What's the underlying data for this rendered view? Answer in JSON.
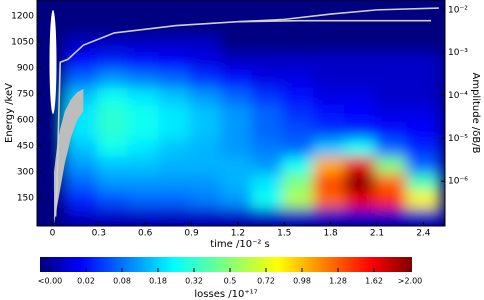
{
  "chart_data": {
    "type": "heatmap",
    "x_label": "time  /10⁻² s",
    "y_label": "Energy  /keV",
    "y2_label": "Amplitude  /δB/B",
    "colorbar_label": "losses  /10⁺¹⁷",
    "xlim": [
      -0.1,
      2.54
    ],
    "xticks": [
      0,
      0.3,
      0.6,
      0.9,
      1.2,
      1.5,
      1.8,
      2.1,
      2.4
    ],
    "ylim": [
      -12,
      1293
    ],
    "yticks": [
      150,
      300,
      450,
      600,
      750,
      900,
      1050,
      1200
    ],
    "y2lim": [
      9e-08,
      0.017
    ],
    "y2_scale": "log",
    "y2ticks": [
      {
        "value": 1e-06,
        "label": "10⁻⁶"
      },
      {
        "value": 1e-05,
        "label": "10⁻⁵"
      },
      {
        "value": 0.0001,
        "label": "10⁻⁴"
      },
      {
        "value": 0.001,
        "label": "10⁻³"
      },
      {
        "value": 0.01,
        "label": "10⁻²"
      }
    ],
    "x_edges": [
      -0.1,
      0.1,
      0.3,
      0.5,
      0.7,
      0.9,
      1.1,
      1.3,
      1.5,
      1.7,
      1.9,
      2.1,
      2.3,
      2.5
    ],
    "y_edges": [
      0,
      100,
      200,
      300,
      400,
      500,
      600,
      700,
      800,
      900,
      1000,
      1100,
      1200,
      1300
    ],
    "z": [
      [
        0,
        0.01,
        0.01,
        0.01,
        0.01,
        0.01,
        0.01,
        0.01,
        0.01,
        0.01,
        0.01,
        0.01,
        0.01
      ],
      [
        0,
        0.05,
        0.08,
        0.1,
        0.1,
        0.12,
        0.15,
        0.3,
        0.6,
        1.2,
        1.6,
        1.4,
        0.8
      ],
      [
        0,
        0.1,
        0.15,
        0.15,
        0.15,
        0.15,
        0.18,
        0.25,
        0.5,
        1.3,
        2.0,
        1.2,
        0.4
      ],
      [
        0,
        0.15,
        0.2,
        0.2,
        0.18,
        0.18,
        0.18,
        0.15,
        0.3,
        1.0,
        1.6,
        0.5,
        0.1
      ],
      [
        0,
        0.2,
        0.3,
        0.25,
        0.2,
        0.18,
        0.15,
        0.12,
        0.1,
        0.2,
        0.3,
        0.1,
        0.05
      ],
      [
        0,
        0.25,
        0.35,
        0.3,
        0.25,
        0.2,
        0.15,
        0.1,
        0.08,
        0.06,
        0.05,
        0.04,
        0.03
      ],
      [
        0,
        0.25,
        0.35,
        0.3,
        0.25,
        0.2,
        0.15,
        0.1,
        0.06,
        0.04,
        0.03,
        0.02,
        0.02
      ],
      [
        0,
        0.2,
        0.3,
        0.25,
        0.2,
        0.15,
        0.1,
        0.06,
        0.04,
        0.02,
        0.02,
        0.01,
        0.01
      ],
      [
        0,
        0.1,
        0.15,
        0.12,
        0.1,
        0.06,
        0.04,
        0.02,
        0.02,
        0.01,
        0.01,
        0.01,
        0.01
      ],
      [
        0,
        0.04,
        0.05,
        0.04,
        0.03,
        0.02,
        0.01,
        0.01,
        0.01,
        0.01,
        0.01,
        0.01,
        0.01
      ],
      [
        0,
        0.01,
        0.01,
        0.01,
        0.01,
        0.01,
        0,
        0,
        0,
        0,
        0,
        0,
        0
      ],
      [
        0,
        0,
        0,
        0,
        0,
        0,
        0,
        0,
        0,
        0,
        0,
        0,
        0
      ],
      [
        0,
        0,
        0,
        0,
        0,
        0,
        0,
        0,
        0,
        0,
        0,
        0,
        0
      ]
    ],
    "color_scale": "sqrt",
    "colorbar_ticks": [
      {
        "value": 0,
        "label": "<0.00"
      },
      0.02,
      0.08,
      0.18,
      0.32,
      0.5,
      0.72,
      0.98,
      1.28,
      1.62,
      {
        "value": 2,
        "label": ">2.00"
      }
    ],
    "band": {
      "color": "#bdbdbd",
      "x": [
        0.01,
        0.03,
        0.05,
        0.08,
        0.12,
        0.16,
        0.2
      ],
      "lower": [
        0,
        100,
        200,
        350,
        500,
        600,
        650
      ],
      "upper": [
        300,
        450,
        550,
        650,
        720,
        760,
        780
      ]
    },
    "series": [
      {
        "axis": "y2",
        "color": "#cfcfcf",
        "x": [
          0.02,
          0.03,
          0.05,
          0.1,
          0.2,
          0.4,
          0.8,
          1.2,
          1.6,
          2.0,
          2.45
        ],
        "values": [
          1.5e-07,
          1e-06,
          0.0006,
          0.0007,
          0.0015,
          0.0029,
          0.0043,
          0.0053,
          0.0056,
          0.0056,
          0.0056
        ]
      },
      {
        "axis": "y2",
        "color": "#cfcfcf",
        "x": [
          1.2,
          1.5,
          1.8,
          2.1,
          2.5
        ],
        "values": [
          0.0053,
          0.006,
          0.008,
          0.01,
          0.011
        ]
      }
    ]
  }
}
